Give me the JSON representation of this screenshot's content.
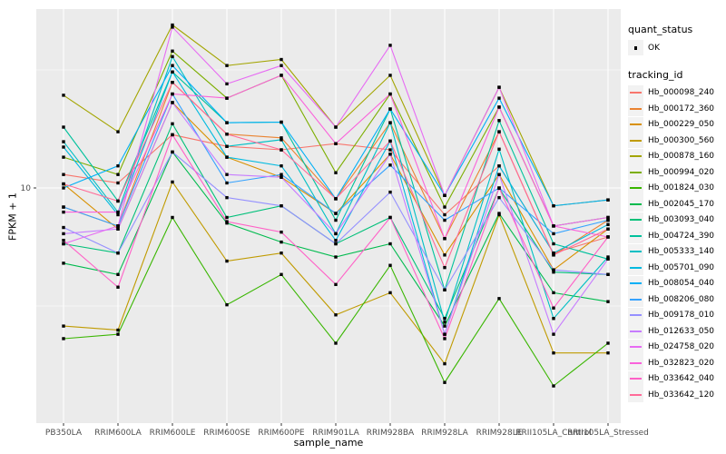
{
  "figure": {
    "panel_bg": "#EBEBEB",
    "grid_color": "#FFFFFF",
    "tick_label_color": "#4D4D4D",
    "point_color": "#000000",
    "legend_key_bg": "#F2F2F2"
  },
  "legend": {
    "quant_status_title": "quant_status",
    "quant_status_items": [
      {
        "label": "OK"
      }
    ],
    "tracking_id_title": "tracking_id"
  },
  "chart_data": {
    "type": "line",
    "xlabel": "sample_name",
    "ylabel": "FPKM + 1",
    "y_scale": "log10",
    "y_tick_labels": [
      "10"
    ],
    "y_tick_values": [
      10
    ],
    "y_minor_values": [
      3.162,
      31.62
    ],
    "ylim_approx": [
      1.02,
      57
    ],
    "grid": "major-white-on-gray",
    "legend_position": "right",
    "categories": [
      "PB350LA",
      "RRIM600LA",
      "RRIM600LE",
      "RRIM600SE",
      "RRIM600PE",
      "RRIM901LA",
      "RRIM928BA",
      "RRIM928LA",
      "RRIM928LE",
      "RRII105LA_Control",
      "RRII105LA_Stressed"
    ],
    "series": [
      {
        "name": "Hb_000098_240",
        "color": "#F8766D",
        "values": [
          11.4,
          10.5,
          16.8,
          15.0,
          14.5,
          15.4,
          14.5,
          7.7,
          12.4,
          5.3,
          6.2
        ]
      },
      {
        "name": "Hb_000172_360",
        "color": "#EA8331",
        "values": [
          8.3,
          6.9,
          28,
          16.9,
          16.3,
          9.0,
          18.9,
          6.1,
          17.3,
          5.2,
          7.3
        ]
      },
      {
        "name": "Hb_000229_050",
        "color": "#D89000",
        "values": [
          10.4,
          6.7,
          23,
          13.5,
          11.1,
          7.8,
          13.9,
          5.2,
          11.4,
          4.5,
          6.7
        ]
      },
      {
        "name": "Hb_000300_560",
        "color": "#C09B00",
        "values": [
          2.6,
          2.5,
          10.6,
          4.9,
          5.3,
          2.9,
          3.6,
          1.8,
          7.7,
          2.0,
          2.0
        ]
      },
      {
        "name": "Hb_000878_160",
        "color": "#A3A500",
        "values": [
          24.7,
          17.3,
          49,
          33,
          35,
          18.1,
          30,
          9.3,
          26.7,
          8.4,
          8.9
        ]
      },
      {
        "name": "Hb_000994_020",
        "color": "#7CAE00",
        "values": [
          13.5,
          11.4,
          38,
          24,
          30,
          11.6,
          25,
          8.3,
          22,
          6.9,
          7.5
        ]
      },
      {
        "name": "Hb_001824_030",
        "color": "#39B600",
        "values": [
          2.3,
          2.4,
          7.5,
          3.2,
          4.3,
          2.2,
          4.7,
          1.5,
          3.4,
          1.45,
          2.2
        ]
      },
      {
        "name": "Hb_002045_170",
        "color": "#00BB4E",
        "values": [
          4.8,
          4.3,
          14.2,
          7.1,
          5.9,
          5.1,
          5.8,
          2.6,
          7.8,
          3.6,
          3.3
        ]
      },
      {
        "name": "Hb_003093_040",
        "color": "#00C079",
        "values": [
          5.8,
          5.3,
          18.7,
          7.5,
          8.4,
          5.8,
          7.5,
          2.8,
          9.97,
          4.4,
          4.3
        ]
      },
      {
        "name": "Hb_004724_390",
        "color": "#00C19C",
        "values": [
          18.1,
          8.8,
          31,
          18.9,
          19,
          7.3,
          21.6,
          3.7,
          19.3,
          5.8,
          5.0
        ]
      },
      {
        "name": "Hb_005333_140",
        "color": "#00BFC4",
        "values": [
          15.7,
          7.9,
          36,
          15,
          16,
          6.4,
          18.9,
          2.7,
          14.6,
          2.8,
          5.1
        ]
      },
      {
        "name": "Hb_005701_090",
        "color": "#00BAE0",
        "values": [
          14.9,
          7.7,
          31,
          13.5,
          12.4,
          6.0,
          15.8,
          2.4,
          12.4,
          5.3,
          7.0
        ]
      },
      {
        "name": "Hb_008054_040",
        "color": "#00B0F6",
        "values": [
          10.0,
          12.4,
          33,
          18.9,
          19,
          9.0,
          21.6,
          9.3,
          24,
          8.4,
          8.9
        ]
      },
      {
        "name": "Hb_008206_080",
        "color": "#35A2FF",
        "values": [
          8.3,
          6.9,
          25,
          10.5,
          11.4,
          7.8,
          12.5,
          7.3,
          10.0,
          6.4,
          7.3
        ]
      },
      {
        "name": "Hb_009178_010",
        "color": "#9590FF",
        "values": [
          6.8,
          5.3,
          14.2,
          9.1,
          8.4,
          5.8,
          9.6,
          3.7,
          9.1,
          4.5,
          4.3
        ]
      },
      {
        "name": "Hb_012633_050",
        "color": "#C77CFF",
        "values": [
          6.4,
          6.7,
          23,
          11.4,
          11.1,
          6.4,
          13.9,
          2.4,
          11.4,
          2.4,
          5.0
        ]
      },
      {
        "name": "Hb_024758_020",
        "color": "#E76BF3",
        "values": [
          5.8,
          6.9,
          48,
          27.6,
          33,
          18.1,
          40.2,
          9.3,
          26.7,
          6.9,
          7.5
        ]
      },
      {
        "name": "Hb_032823_020",
        "color": "#FA62DB",
        "values": [
          7.9,
          7.9,
          25,
          24,
          30,
          15.4,
          25,
          6.1,
          22,
          6.9,
          6.2
        ]
      },
      {
        "name": "Hb_033642_040",
        "color": "#FF61C7",
        "values": [
          6.0,
          3.8,
          16.8,
          7.2,
          6.5,
          3.9,
          7.5,
          2.3,
          10.0,
          3.1,
          6.2
        ]
      },
      {
        "name": "Hb_033642_120",
        "color": "#FF6A98",
        "values": [
          10.4,
          8.8,
          28,
          16.9,
          14.5,
          9.0,
          15.8,
          4.6,
          17.3,
          5.2,
          6.7
        ]
      }
    ]
  }
}
